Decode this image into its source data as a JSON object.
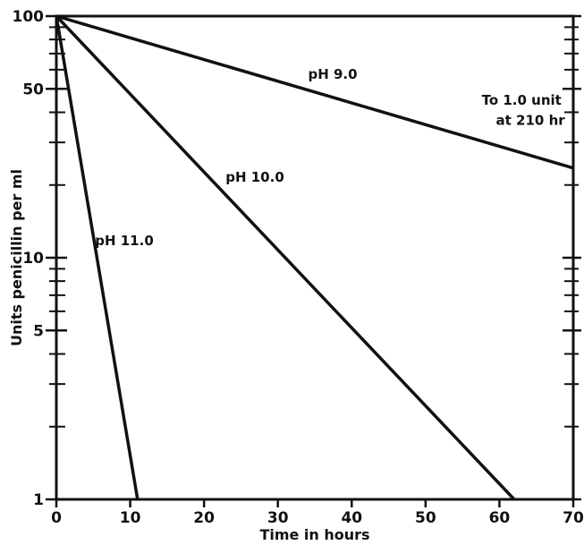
{
  "chart_data": {
    "type": "line",
    "xlabel": "Time in hours",
    "ylabel": "Units penicillin per ml",
    "xlim": [
      0,
      70
    ],
    "ylim": [
      1,
      100
    ],
    "yscale": "log",
    "grid": false,
    "x_ticks": [
      0,
      10,
      20,
      30,
      40,
      50,
      60,
      70
    ],
    "y_major_ticks": [
      1,
      5,
      10,
      50,
      100
    ],
    "y_minor_ticks": [
      2,
      3,
      4,
      6,
      7,
      8,
      9,
      20,
      30,
      40,
      60,
      70,
      80,
      90
    ],
    "series": [
      {
        "name": "pH 9.0",
        "x": [
          0,
          70
        ],
        "y": [
          100,
          23.5
        ]
      },
      {
        "name": "pH 10.0",
        "x": [
          0,
          62
        ],
        "y": [
          100,
          1
        ]
      },
      {
        "name": "pH 11.0",
        "x": [
          0,
          11
        ],
        "y": [
          100,
          1
        ]
      }
    ],
    "annotations": [
      {
        "text": "To 1.0 unit",
        "x": 63,
        "y": 43
      },
      {
        "text": "at 210 hr",
        "x": 64.2,
        "y": 35.5
      }
    ]
  }
}
